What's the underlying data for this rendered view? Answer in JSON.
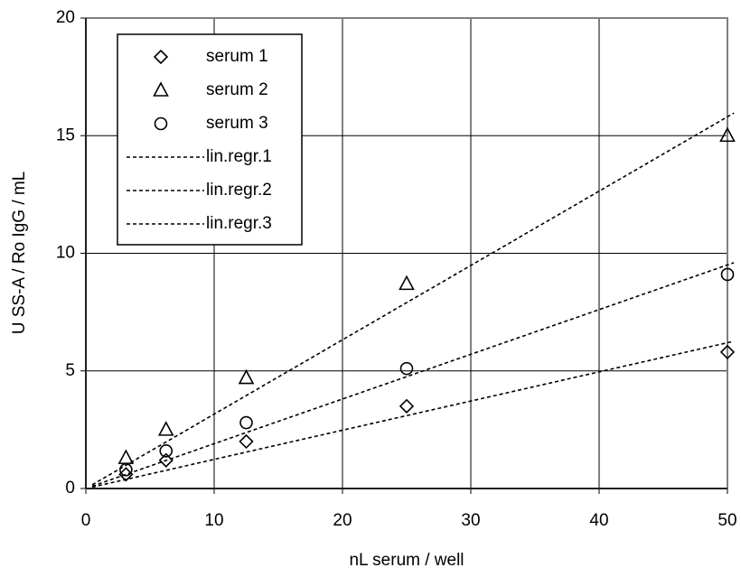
{
  "chart_data": {
    "type": "scatter",
    "xlabel": "nL serum / well",
    "ylabel": "U  SS-A / Ro IgG / mL",
    "x": [
      3.125,
      6.25,
      12.5,
      25,
      50
    ],
    "series": [
      {
        "name": "serum 1",
        "color": "#000000",
        "marker": "diamond",
        "values": [
          0.6,
          1.2,
          2.0,
          3.5,
          5.8
        ]
      },
      {
        "name": "serum 2",
        "color": "#000000",
        "marker": "triangle",
        "values": [
          1.3,
          2.5,
          4.7,
          8.7,
          15.0
        ]
      },
      {
        "name": "serum 3",
        "color": "#000000",
        "marker": "circle",
        "values": [
          0.8,
          1.6,
          2.8,
          5.1,
          9.1
        ]
      },
      {
        "name": "lin.regr.1",
        "color": "#000000",
        "dashed": true,
        "x": [
          0.5,
          50.5
        ],
        "values": [
          0.06,
          6.26
        ]
      },
      {
        "name": "lin.regr.2",
        "color": "#000000",
        "dashed": true,
        "x": [
          0.5,
          50.5
        ],
        "values": [
          0.16,
          15.96
        ]
      },
      {
        "name": "lin.regr.3",
        "color": "#000000",
        "dashed": true,
        "x": [
          0.5,
          50.5
        ],
        "values": [
          0.1,
          9.6
        ]
      }
    ],
    "xlim": [
      0,
      50
    ],
    "xticks": [
      0,
      10,
      20,
      30,
      40,
      50
    ],
    "ylim": [
      0,
      20
    ],
    "yticks": [
      0,
      5,
      10,
      15,
      20
    ],
    "grid": true,
    "legend": "upper left"
  }
}
